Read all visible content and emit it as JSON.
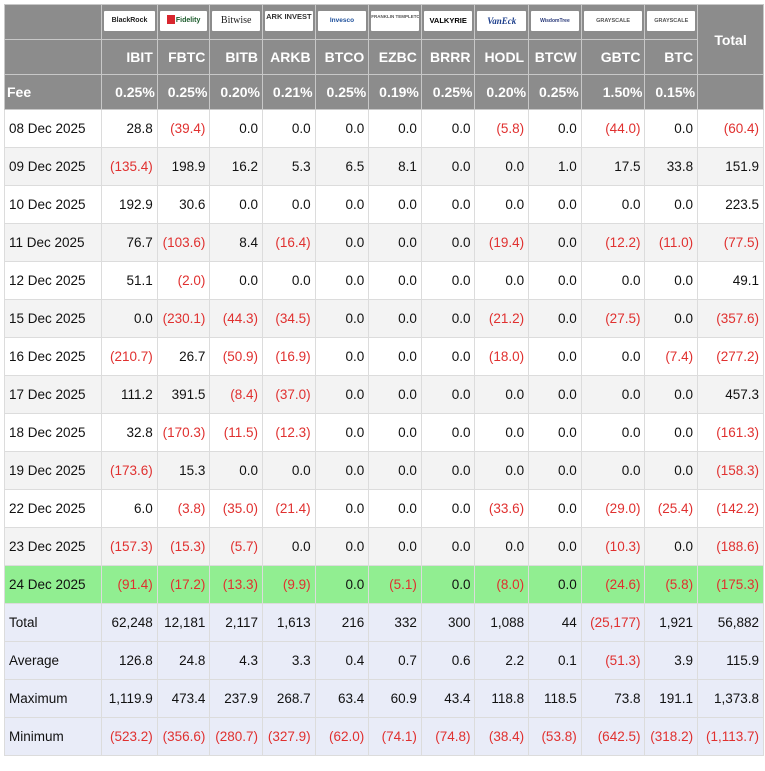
{
  "chart_data": {
    "type": "table",
    "header": {
      "total_label": "Total",
      "fee_label": "Fee",
      "issuers": [
        "BlackRock",
        "Fidelity",
        "Bitwise",
        "ARK INVEST",
        "Invesco",
        "FRANKLIN TEMPLETON",
        "VALKYRIE",
        "VanEck",
        "WisdomTree",
        "GRAYSCALE",
        "GRAYSCALE"
      ],
      "tickers": [
        "IBIT",
        "FBTC",
        "BITB",
        "ARKB",
        "BTCO",
        "EZBC",
        "BRRR",
        "HODL",
        "BTCW",
        "GBTC",
        "BTC"
      ],
      "fees": [
        "0.25%",
        "0.25%",
        "0.20%",
        "0.21%",
        "0.25%",
        "0.19%",
        "0.25%",
        "0.20%",
        "0.25%",
        "1.50%",
        "0.15%"
      ]
    },
    "rows": [
      {
        "label": "08 Dec 2025",
        "cells": [
          "28.8",
          "(39.4)",
          "0.0",
          "0.0",
          "0.0",
          "0.0",
          "0.0",
          "(5.8)",
          "0.0",
          "(44.0)",
          "0.0",
          "(60.4)"
        ]
      },
      {
        "label": "09 Dec 2025",
        "cells": [
          "(135.4)",
          "198.9",
          "16.2",
          "5.3",
          "6.5",
          "8.1",
          "0.0",
          "0.0",
          "1.0",
          "17.5",
          "33.8",
          "151.9"
        ]
      },
      {
        "label": "10 Dec 2025",
        "cells": [
          "192.9",
          "30.6",
          "0.0",
          "0.0",
          "0.0",
          "0.0",
          "0.0",
          "0.0",
          "0.0",
          "0.0",
          "0.0",
          "223.5"
        ]
      },
      {
        "label": "11 Dec 2025",
        "cells": [
          "76.7",
          "(103.6)",
          "8.4",
          "(16.4)",
          "0.0",
          "0.0",
          "0.0",
          "(19.4)",
          "0.0",
          "(12.2)",
          "(11.0)",
          "(77.5)"
        ]
      },
      {
        "label": "12 Dec 2025",
        "cells": [
          "51.1",
          "(2.0)",
          "0.0",
          "0.0",
          "0.0",
          "0.0",
          "0.0",
          "0.0",
          "0.0",
          "0.0",
          "0.0",
          "49.1"
        ]
      },
      {
        "label": "15 Dec 2025",
        "cells": [
          "0.0",
          "(230.1)",
          "(44.3)",
          "(34.5)",
          "0.0",
          "0.0",
          "0.0",
          "(21.2)",
          "0.0",
          "(27.5)",
          "0.0",
          "(357.6)"
        ]
      },
      {
        "label": "16 Dec 2025",
        "cells": [
          "(210.7)",
          "26.7",
          "(50.9)",
          "(16.9)",
          "0.0",
          "0.0",
          "0.0",
          "(18.0)",
          "0.0",
          "0.0",
          "(7.4)",
          "(277.2)"
        ]
      },
      {
        "label": "17 Dec 2025",
        "cells": [
          "111.2",
          "391.5",
          "(8.4)",
          "(37.0)",
          "0.0",
          "0.0",
          "0.0",
          "0.0",
          "0.0",
          "0.0",
          "0.0",
          "457.3"
        ]
      },
      {
        "label": "18 Dec 2025",
        "cells": [
          "32.8",
          "(170.3)",
          "(11.5)",
          "(12.3)",
          "0.0",
          "0.0",
          "0.0",
          "0.0",
          "0.0",
          "0.0",
          "0.0",
          "(161.3)"
        ]
      },
      {
        "label": "19 Dec 2025",
        "cells": [
          "(173.6)",
          "15.3",
          "0.0",
          "0.0",
          "0.0",
          "0.0",
          "0.0",
          "0.0",
          "0.0",
          "0.0",
          "0.0",
          "(158.3)"
        ]
      },
      {
        "label": "22 Dec 2025",
        "cells": [
          "6.0",
          "(3.8)",
          "(35.0)",
          "(21.4)",
          "0.0",
          "0.0",
          "0.0",
          "(33.6)",
          "0.0",
          "(29.0)",
          "(25.4)",
          "(142.2)"
        ]
      },
      {
        "label": "23 Dec 2025",
        "cells": [
          "(157.3)",
          "(15.3)",
          "(5.7)",
          "0.0",
          "0.0",
          "0.0",
          "0.0",
          "0.0",
          "0.0",
          "(10.3)",
          "0.0",
          "(188.6)"
        ]
      },
      {
        "label": "24 Dec 2025",
        "highlight": true,
        "cells": [
          "(91.4)",
          "(17.2)",
          "(13.3)",
          "(9.9)",
          "0.0",
          "(5.1)",
          "0.0",
          "(8.0)",
          "0.0",
          "(24.6)",
          "(5.8)",
          "(175.3)"
        ]
      },
      {
        "label": "Total",
        "summary": true,
        "cells": [
          "62,248",
          "12,181",
          "2,117",
          "1,613",
          "216",
          "332",
          "300",
          "1,088",
          "44",
          "(25,177)",
          "1,921",
          "56,882"
        ]
      },
      {
        "label": "Average",
        "summary": true,
        "cells": [
          "126.8",
          "24.8",
          "4.3",
          "3.3",
          "0.4",
          "0.7",
          "0.6",
          "2.2",
          "0.1",
          "(51.3)",
          "3.9",
          "115.9"
        ]
      },
      {
        "label": "Maximum",
        "summary": true,
        "cells": [
          "1,119.9",
          "473.4",
          "237.9",
          "268.7",
          "63.4",
          "60.9",
          "43.4",
          "118.8",
          "118.5",
          "73.8",
          "191.1",
          "1,373.8"
        ]
      },
      {
        "label": "Minimum",
        "summary": true,
        "cells": [
          "(523.2)",
          "(356.6)",
          "(280.7)",
          "(327.9)",
          "(62.0)",
          "(74.1)",
          "(74.8)",
          "(38.4)",
          "(53.8)",
          "(642.5)",
          "(318.2)",
          "(1,113.7)"
        ]
      }
    ],
    "colors": {
      "header_bg": "#8c8c8c",
      "header_text": "#ffffff",
      "negative_text": "#e0302f",
      "highlight_row_bg": "#91ee91",
      "summary_row_bg": "#e9ecf8",
      "stripe_bg": "#f3f3f3"
    }
  }
}
